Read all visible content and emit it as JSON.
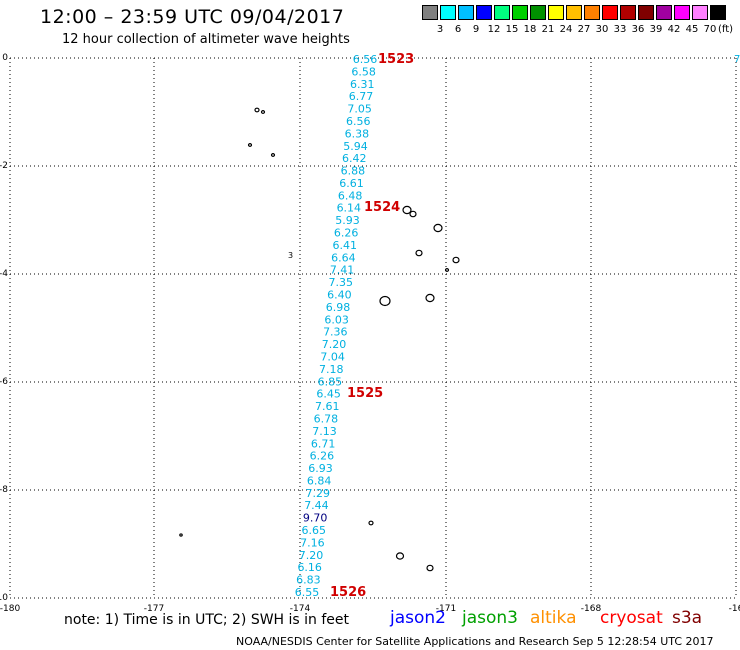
{
  "header": {
    "title": "12:00 – 23:59 UTC 09/04/2017",
    "subtitle": "12 hour collection of altimeter wave heights"
  },
  "scale": {
    "colors": [
      "#808080",
      "#00ffff",
      "#00bfff",
      "#0000ff",
      "#00ff7f",
      "#00d000",
      "#009000",
      "#ffff00",
      "#ffbf00",
      "#ff8000",
      "#ff0000",
      "#b00000",
      "#800000",
      "#a000a0",
      "#ff00ff",
      "#ff80ff",
      "#000000"
    ],
    "labels": [
      "3",
      "6",
      "9",
      "12",
      "15",
      "18",
      "21",
      "24",
      "27",
      "30",
      "33",
      "36",
      "39",
      "42",
      "45",
      "70"
    ],
    "unit": "(ft)"
  },
  "map": {
    "lat_labels": [
      "0",
      "-2",
      "-4",
      "-6",
      "-8",
      "-10"
    ],
    "lon_labels": [
      "-180",
      "-177",
      "-174",
      "-171",
      "-168",
      "-16"
    ],
    "right_edge_label": "7",
    "island_label": "3",
    "time_labels": [
      "1523",
      "1524",
      "1525",
      "1526"
    ],
    "wave_heights": [
      "6.56",
      "6.58",
      "6.31",
      "6.77",
      "7.05",
      "6.56",
      "6.38",
      "5.94",
      "6.42",
      "6.88",
      "6.61",
      "6.48",
      "6.14",
      "5.93",
      "6.26",
      "6.41",
      "6.64",
      "7.41",
      "7.35",
      "6.40",
      "6.98",
      "6.03",
      "7.36",
      "7.20",
      "7.04",
      "7.18",
      "6.85",
      "6.45",
      "7.61",
      "6.78",
      "7.13",
      "6.71",
      "6.26",
      "6.93",
      "6.84",
      "7.29",
      "7.44",
      "9.70",
      "6.65",
      "7.16",
      "7.20",
      "6.16",
      "6.83",
      "6.55"
    ],
    "colors": {
      "grid": "#000000",
      "wave_cyan": "#00b0e0",
      "wave_dark": "#000080",
      "time_label": "#d00000"
    }
  },
  "footer": {
    "note": "note: 1) Time is in UTC; 2) SWH is in feet",
    "legend": [
      {
        "label": "jason2",
        "color": "#0000ff"
      },
      {
        "label": "jason3",
        "color": "#00a000"
      },
      {
        "label": "altika",
        "color": "#ff9000"
      },
      {
        "label": "cryosat",
        "color": "#ff0000"
      },
      {
        "label": "s3a",
        "color": "#800000"
      }
    ],
    "credit": "NOAA/NESDIS Center for Satellite Applications and Research   Sep  5 12:28:54 UTC 2017"
  }
}
